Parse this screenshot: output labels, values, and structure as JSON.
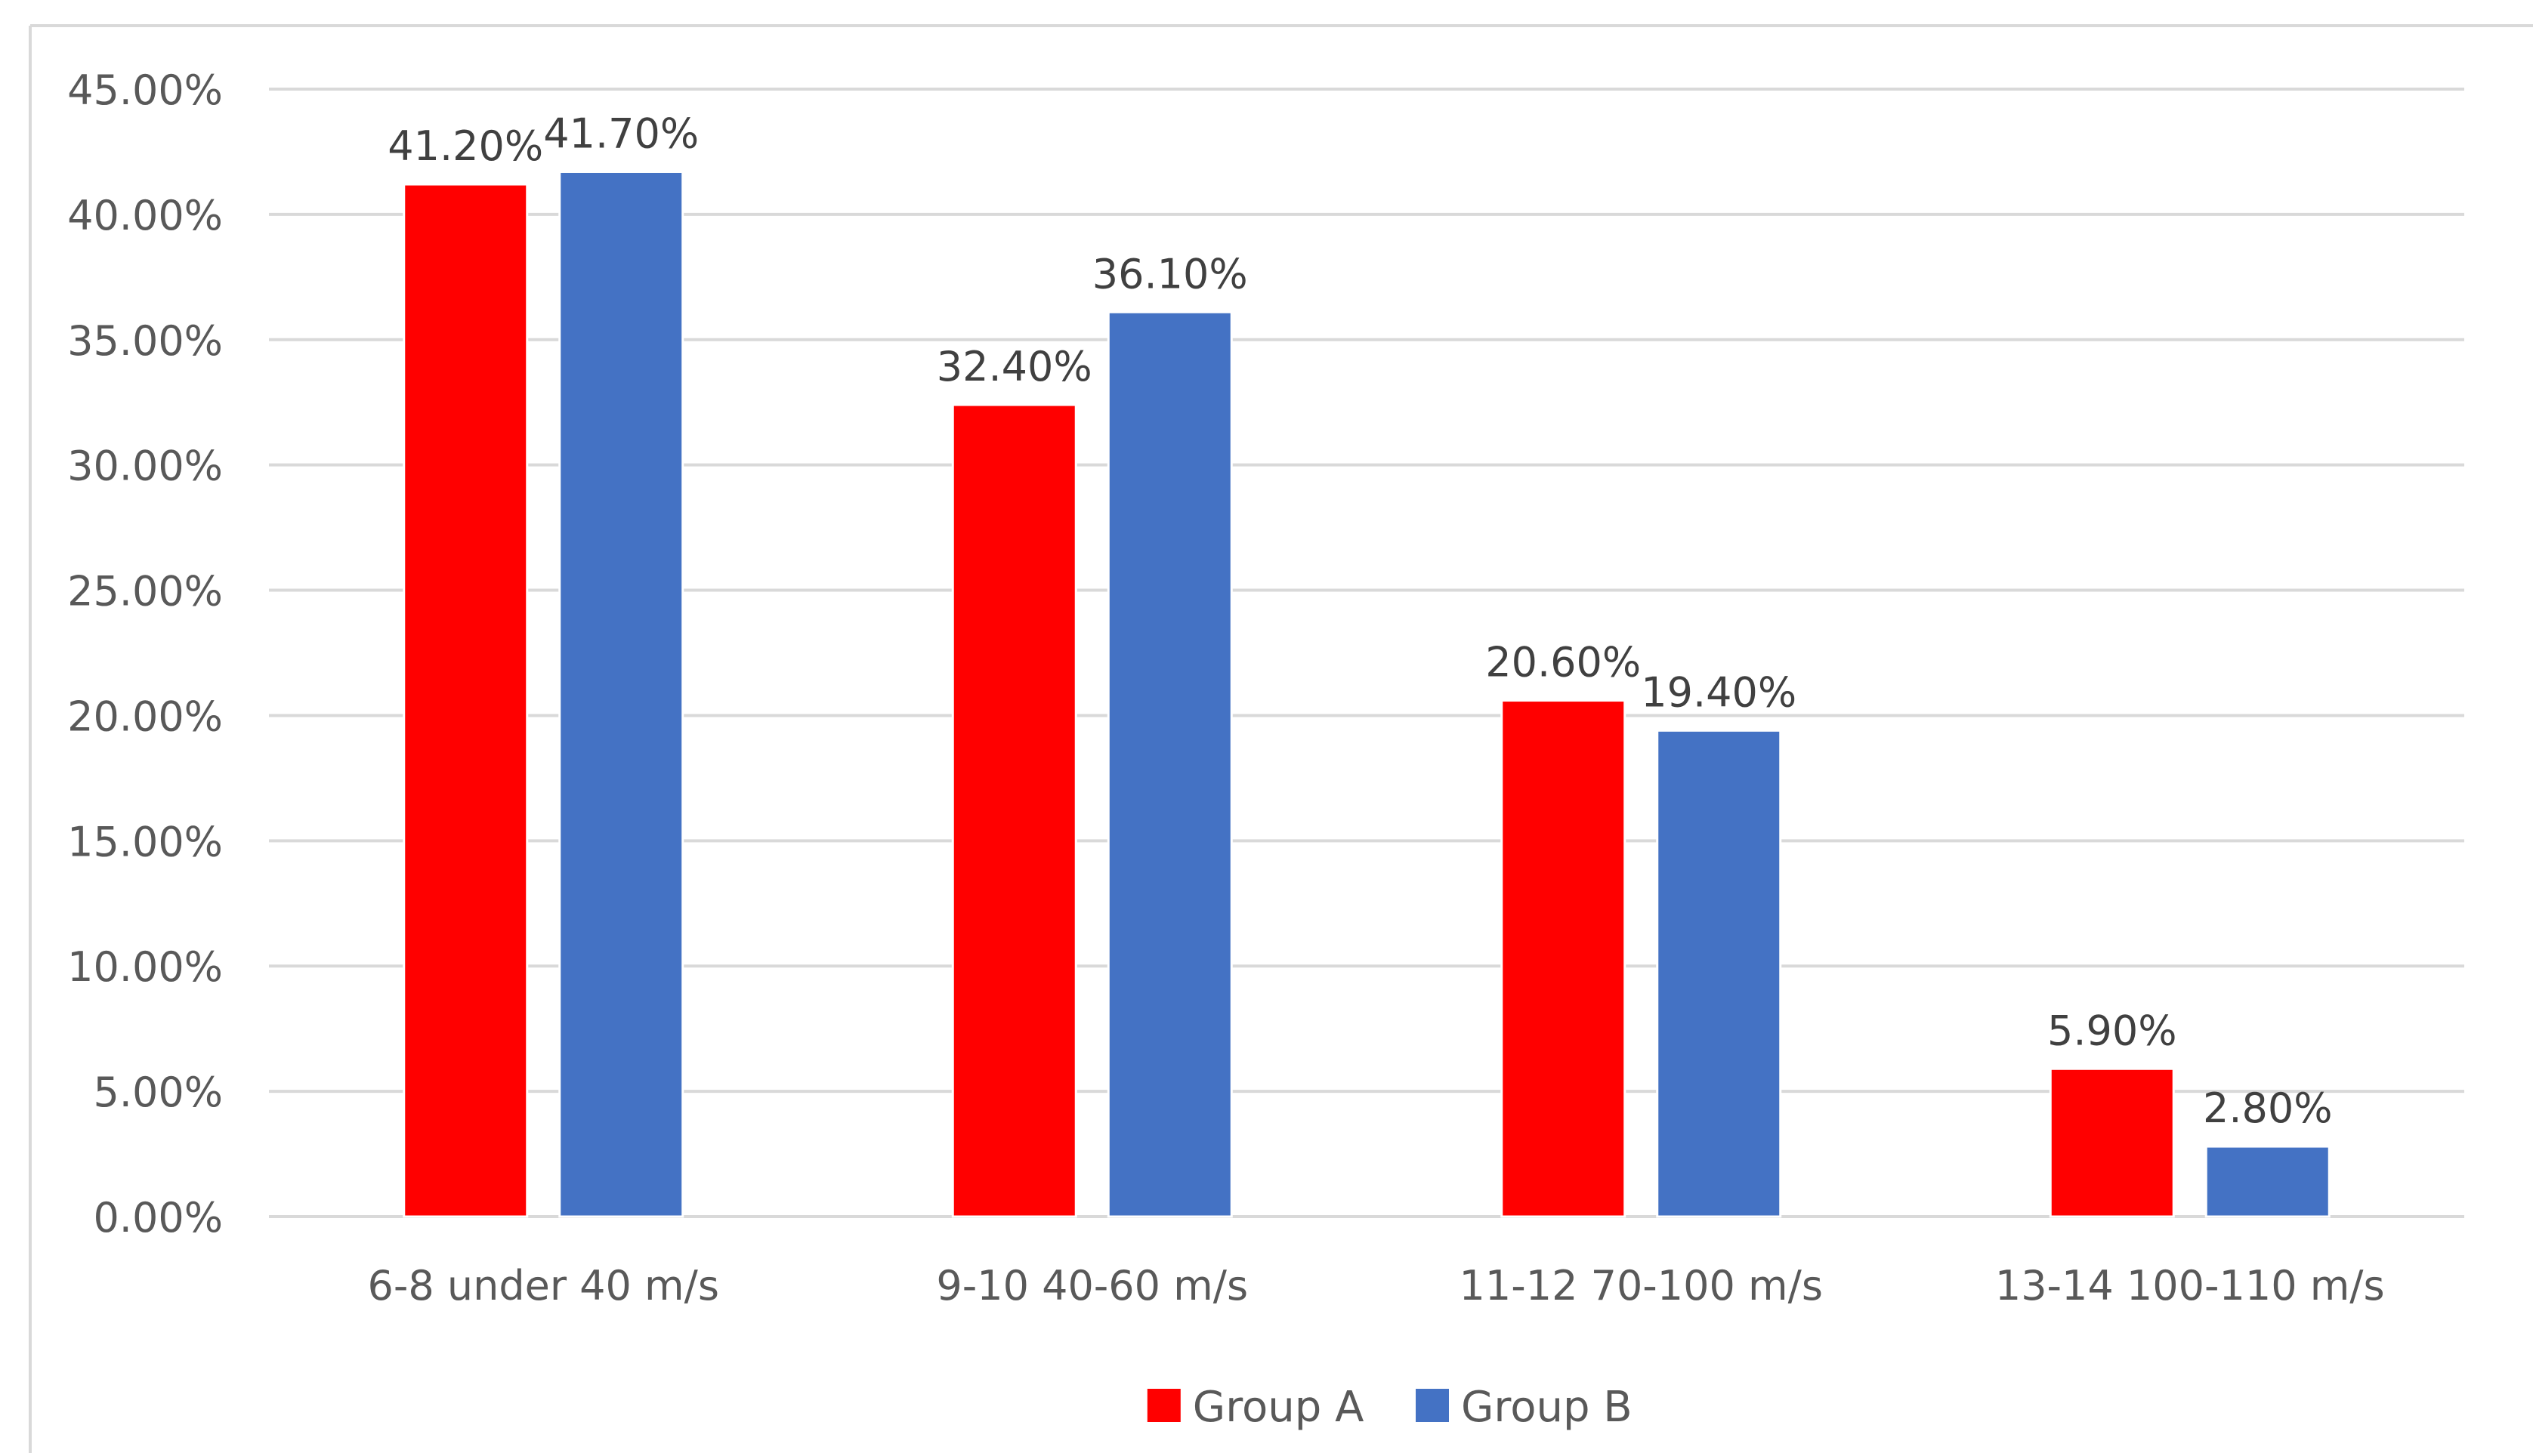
{
  "chart_data": {
    "type": "bar",
    "title": "",
    "xlabel": "",
    "ylabel": "",
    "categories": [
      "6-8 under 40 m/s",
      "9-10 40-60 m/s",
      "11-12 70-100 m/s",
      "13-14 100-110 m/s"
    ],
    "series": [
      {
        "name": "Group A",
        "color": "#FF0000",
        "values": [
          41.2,
          32.4,
          20.6,
          5.9
        ],
        "labels": [
          "41.20%",
          "32.40%",
          "20.60%",
          "5.90%"
        ]
      },
      {
        "name": "Group B",
        "color": "#4472C4",
        "values": [
          41.7,
          36.1,
          19.4,
          2.8
        ],
        "labels": [
          "41.70%",
          "36.10%",
          "19.40%",
          "2.80%"
        ]
      }
    ],
    "ylim": [
      0,
      45
    ],
    "yticks": [
      0,
      5,
      10,
      15,
      20,
      25,
      30,
      35,
      40,
      45
    ],
    "ytick_labels": [
      "0.00%",
      "5.00%",
      "10.00%",
      "15.00%",
      "20.00%",
      "25.00%",
      "30.00%",
      "35.00%",
      "40.00%",
      "45.00%"
    ],
    "grid": true,
    "legend_position": "bottom-center"
  }
}
